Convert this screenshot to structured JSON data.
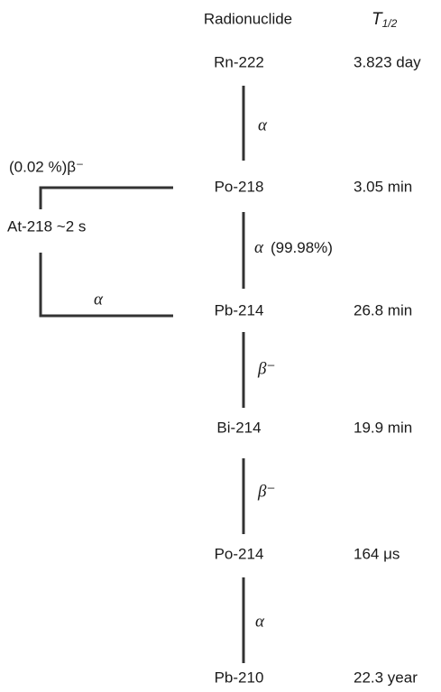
{
  "header": {
    "nuclide": "Radionuclide",
    "half_life": {
      "symbol": "T",
      "subscript": "1/2"
    }
  },
  "nodes": [
    {
      "label": "Rn-222",
      "half_life": "3.823 day"
    },
    {
      "label": "Po-218",
      "half_life": "3.05 min"
    },
    {
      "label": "Pb-214",
      "half_life": "26.8 min"
    },
    {
      "label": "Bi-214",
      "half_life": "19.9 min"
    },
    {
      "label": "Po-214",
      "half_life": "164 μs"
    },
    {
      "label": "Pb-210",
      "half_life": "22.3 year"
    }
  ],
  "decays": [
    {
      "mode": "α"
    },
    {
      "mode": "α",
      "branch": "(99.98%)"
    },
    {
      "mode": "β⁻"
    },
    {
      "mode": "β⁻"
    },
    {
      "mode": "α"
    }
  ],
  "side_branch": {
    "branch": "(0.02 %)β⁻",
    "node": "At-218 ~2 s",
    "mode": "α"
  }
}
